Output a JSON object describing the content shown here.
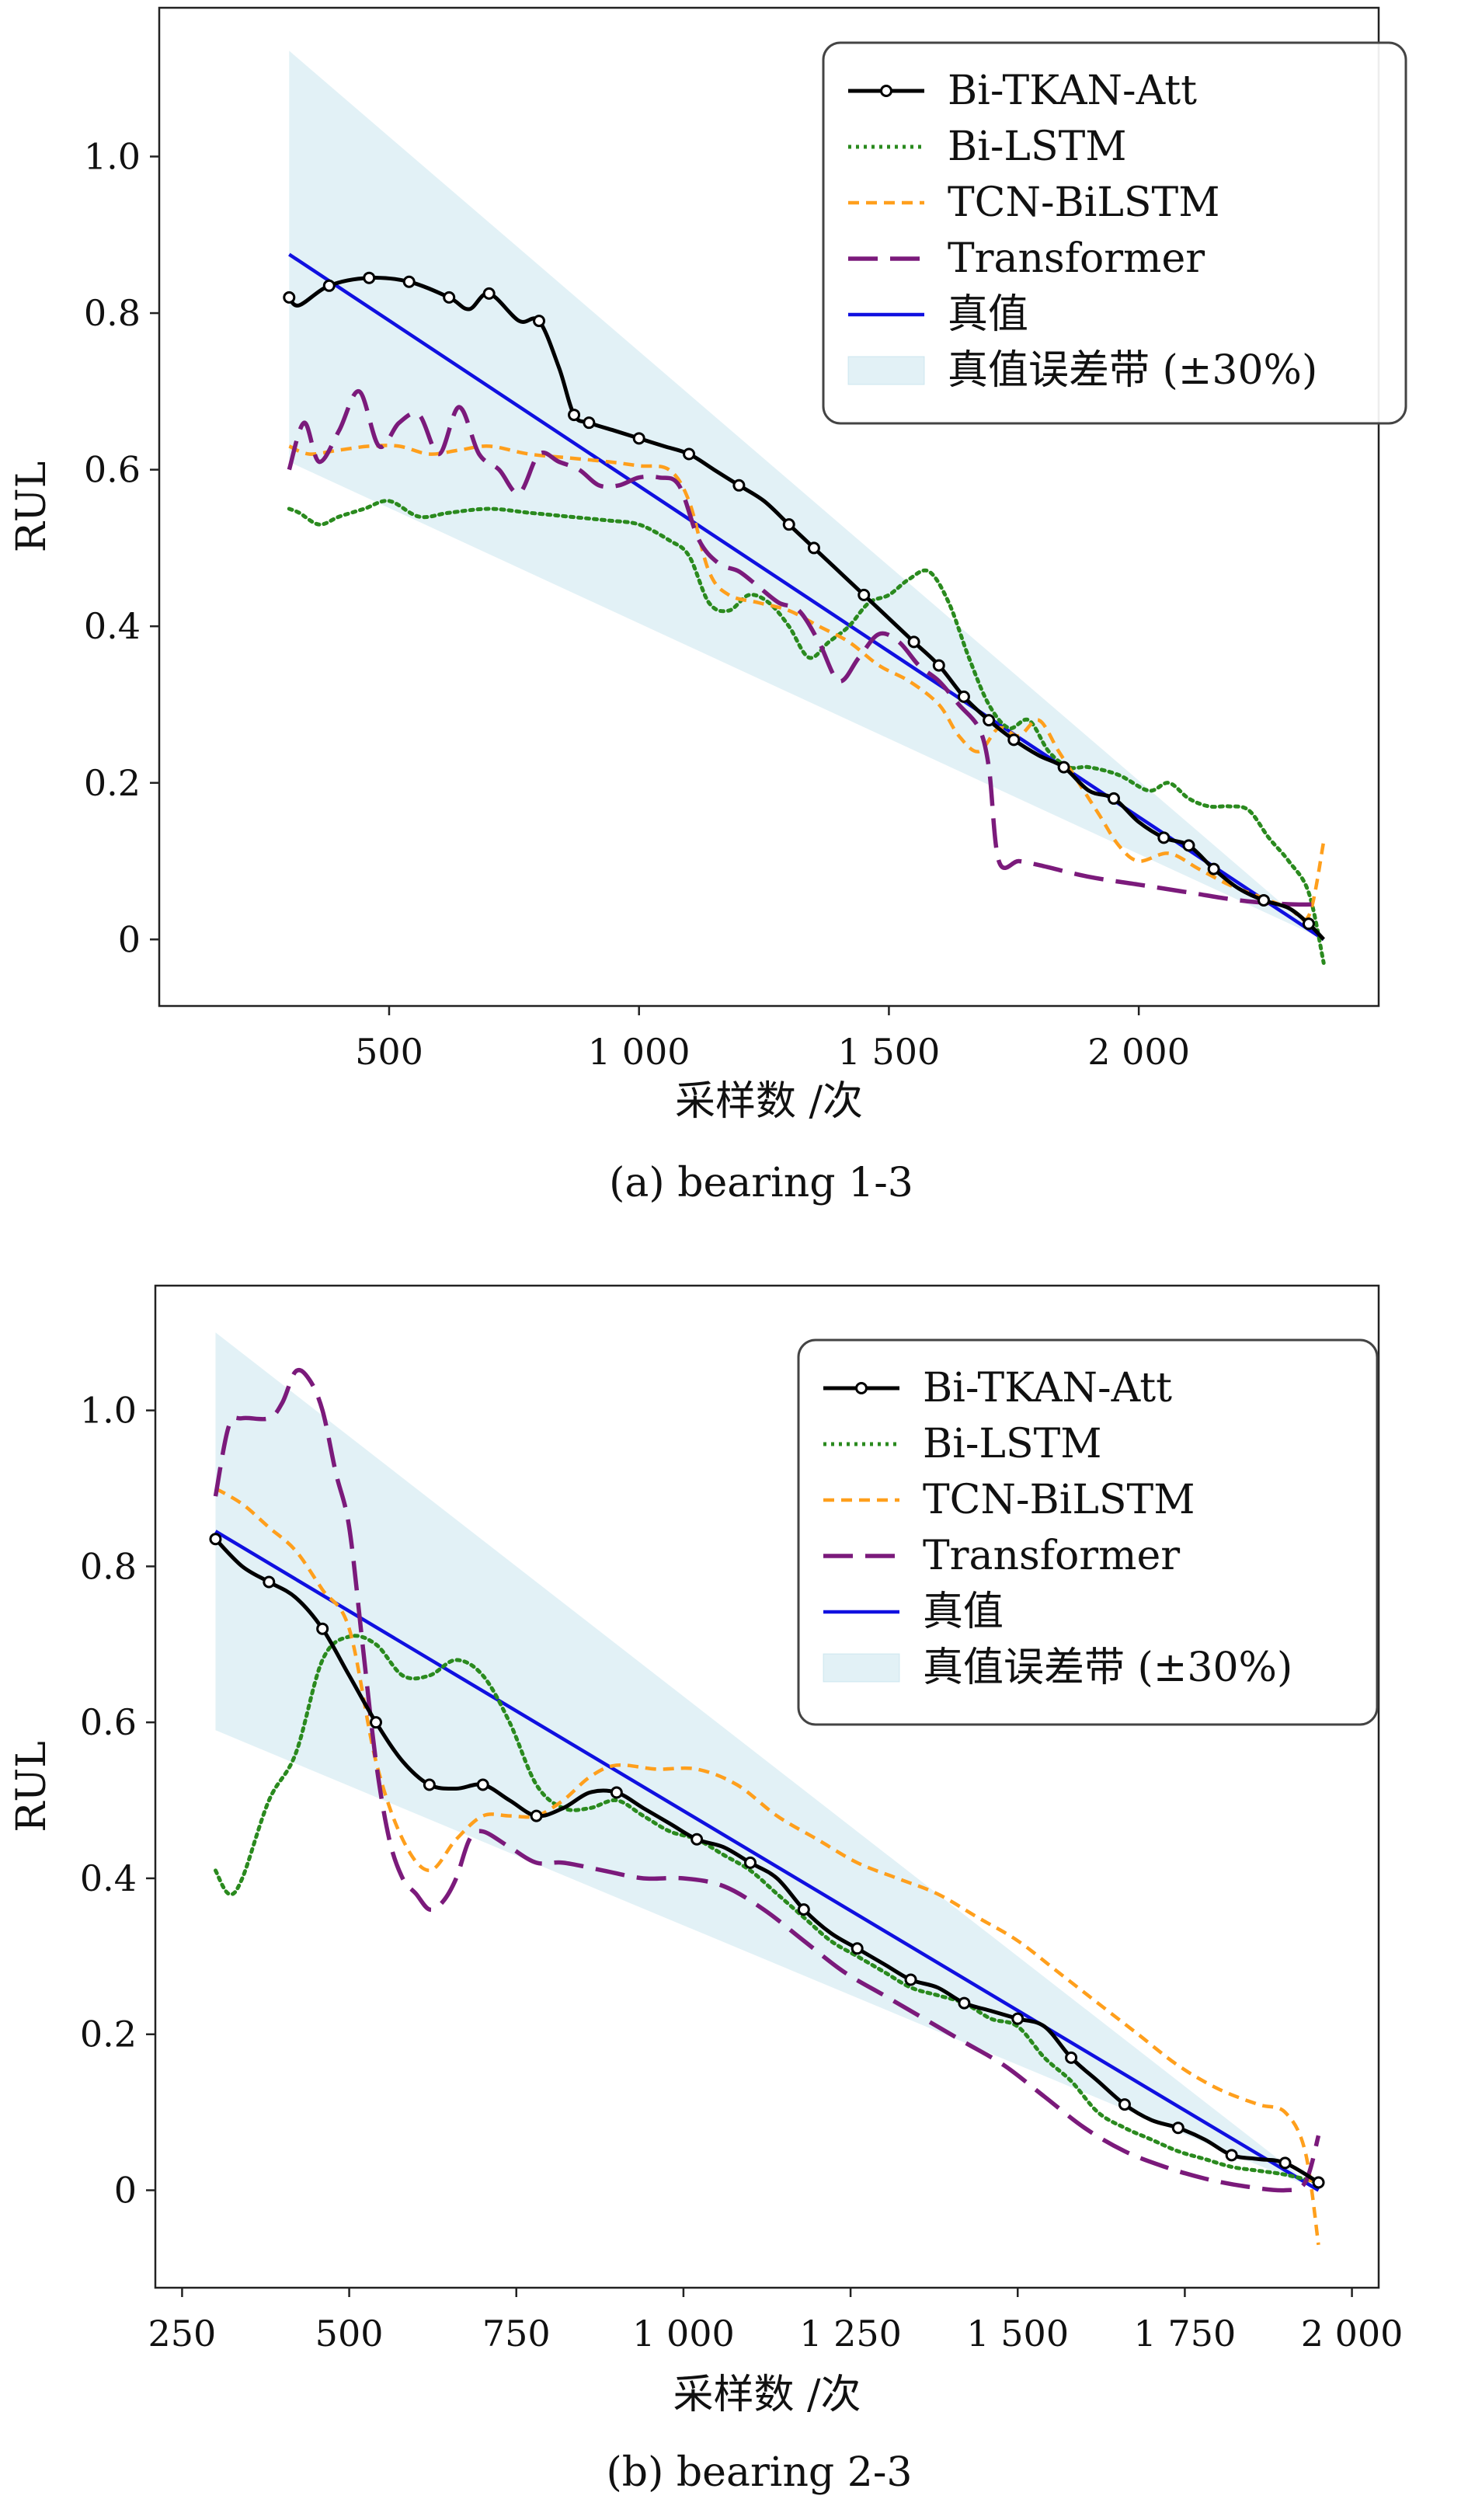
{
  "chart_data": [
    {
      "type": "line",
      "caption": "(a) bearing 1-3",
      "xlabel": "采样数 /次",
      "ylabel": "RUL",
      "xlim": [
        40,
        2480
      ],
      "ylim": [
        -0.085,
        1.19
      ],
      "xticks": [
        500,
        1000,
        1500,
        2000
      ],
      "xtick_labels": [
        "500",
        "1 000",
        "1 500",
        "2 000"
      ],
      "yticks": [
        0,
        0.2,
        0.4,
        0.6,
        0.8,
        1.0
      ],
      "ytick_labels": [
        "0",
        "0.2",
        "0.4",
        "0.6",
        "0.8",
        "1.0"
      ],
      "legend_position": "top-right",
      "band": {
        "name": "真值误差带 (±30%)",
        "color": "#add8e6",
        "x": [
          300,
          2370
        ],
        "upper": [
          1.135,
          0
        ],
        "lower": [
          0.61,
          0
        ]
      },
      "series": [
        {
          "name": "Bi-TKAN-Att",
          "color": "#000000",
          "style": "solid-marker",
          "x": [
            300,
            320,
            380,
            460,
            540,
            620,
            660,
            700,
            760,
            800,
            840,
            870,
            900,
            950,
            1000,
            1050,
            1100,
            1150,
            1200,
            1250,
            1300,
            1350,
            1400,
            1450,
            1500,
            1550,
            1600,
            1650,
            1700,
            1750,
            1800,
            1850,
            1900,
            1950,
            2000,
            2050,
            2100,
            2150,
            2200,
            2250,
            2300,
            2340,
            2370
          ],
          "y": [
            0.82,
            0.81,
            0.835,
            0.845,
            0.84,
            0.82,
            0.805,
            0.825,
            0.79,
            0.79,
            0.73,
            0.67,
            0.66,
            0.65,
            0.64,
            0.63,
            0.62,
            0.6,
            0.58,
            0.56,
            0.53,
            0.5,
            0.47,
            0.44,
            0.41,
            0.38,
            0.35,
            0.31,
            0.28,
            0.255,
            0.235,
            0.22,
            0.19,
            0.18,
            0.15,
            0.13,
            0.12,
            0.09,
            0.065,
            0.05,
            0.04,
            0.02,
            0.0
          ],
          "markers_x": [
            300,
            380,
            460,
            540,
            620,
            700,
            800,
            870,
            900,
            1000,
            1100,
            1200,
            1300,
            1350,
            1450,
            1550,
            1600,
            1650,
            1700,
            1750,
            1850,
            1950,
            2050,
            2100,
            2150,
            2250,
            2340
          ]
        },
        {
          "name": "Bi-LSTM",
          "color": "#2a8a1e",
          "style": "dotted",
          "x": [
            300,
            320,
            360,
            400,
            450,
            500,
            560,
            620,
            700,
            780,
            860,
            940,
            1000,
            1060,
            1100,
            1140,
            1180,
            1220,
            1260,
            1300,
            1340,
            1380,
            1420,
            1460,
            1500,
            1540,
            1580,
            1620,
            1660,
            1700,
            1740,
            1780,
            1820,
            1860,
            1900,
            1960,
            2020,
            2060,
            2100,
            2140,
            2180,
            2220,
            2260,
            2300,
            2340,
            2370
          ],
          "y": [
            0.55,
            0.545,
            0.53,
            0.54,
            0.55,
            0.56,
            0.54,
            0.545,
            0.55,
            0.545,
            0.54,
            0.535,
            0.53,
            0.51,
            0.49,
            0.43,
            0.42,
            0.44,
            0.43,
            0.4,
            0.36,
            0.38,
            0.4,
            0.43,
            0.44,
            0.46,
            0.47,
            0.43,
            0.36,
            0.3,
            0.27,
            0.28,
            0.24,
            0.22,
            0.22,
            0.21,
            0.19,
            0.2,
            0.18,
            0.17,
            0.17,
            0.165,
            0.13,
            0.1,
            0.06,
            -0.03
          ]
        },
        {
          "name": "TCN-BiLSTM",
          "color": "#ff9f1c",
          "style": "dashed",
          "x": [
            300,
            340,
            400,
            460,
            520,
            580,
            640,
            700,
            780,
            860,
            940,
            1000,
            1060,
            1100,
            1140,
            1180,
            1240,
            1300,
            1360,
            1420,
            1480,
            1540,
            1600,
            1640,
            1680,
            1720,
            1760,
            1800,
            1840,
            1880,
            1920,
            1960,
            2000,
            2060,
            2120,
            2180,
            2240,
            2300,
            2340,
            2370
          ],
          "y": [
            0.63,
            0.62,
            0.625,
            0.63,
            0.63,
            0.62,
            0.625,
            0.63,
            0.62,
            0.615,
            0.61,
            0.605,
            0.6,
            0.56,
            0.47,
            0.44,
            0.43,
            0.42,
            0.4,
            0.38,
            0.35,
            0.33,
            0.3,
            0.26,
            0.24,
            0.27,
            0.26,
            0.28,
            0.24,
            0.2,
            0.16,
            0.12,
            0.1,
            0.11,
            0.09,
            0.07,
            0.055,
            0.04,
            0.03,
            0.125
          ]
        },
        {
          "name": "Transformer",
          "color": "#7b1a7b",
          "style": "longdash",
          "x": [
            300,
            330,
            360,
            400,
            440,
            480,
            520,
            560,
            600,
            640,
            680,
            720,
            760,
            800,
            840,
            880,
            920,
            960,
            1000,
            1040,
            1080,
            1120,
            1160,
            1200,
            1240,
            1280,
            1320,
            1360,
            1400,
            1440,
            1480,
            1520,
            1560,
            1600,
            1640,
            1680,
            1700,
            1720,
            1760,
            1800,
            1900,
            2000,
            2100,
            2200,
            2300,
            2370
          ],
          "y": [
            0.6,
            0.66,
            0.61,
            0.65,
            0.7,
            0.63,
            0.66,
            0.67,
            0.62,
            0.68,
            0.62,
            0.6,
            0.57,
            0.62,
            0.61,
            0.6,
            0.58,
            0.58,
            0.59,
            0.59,
            0.58,
            0.51,
            0.48,
            0.47,
            0.45,
            0.43,
            0.42,
            0.38,
            0.33,
            0.36,
            0.39,
            0.38,
            0.35,
            0.33,
            0.3,
            0.27,
            0.22,
            0.1,
            0.1,
            0.095,
            0.08,
            0.07,
            0.06,
            0.05,
            0.045,
            0.045
          ]
        },
        {
          "name": "真值",
          "color": "#1010e0",
          "style": "solid",
          "x": [
            300,
            2370
          ],
          "y": [
            0.875,
            0.0
          ]
        }
      ]
    },
    {
      "type": "line",
      "caption": "(b) bearing 2-3",
      "xlabel": "采样数 /次",
      "ylabel": "RUL",
      "xlim": [
        210,
        2040
      ],
      "ylim": [
        -0.125,
        1.16
      ],
      "xticks": [
        250,
        500,
        750,
        1000,
        1250,
        1500,
        1750,
        2000
      ],
      "xtick_labels": [
        "250",
        "500",
        "750",
        "1 000",
        "1 250",
        "1 500",
        "1 750",
        "2 000"
      ],
      "yticks": [
        0,
        0.2,
        0.4,
        0.6,
        0.8,
        1.0
      ],
      "ytick_labels": [
        "0",
        "0.2",
        "0.4",
        "0.6",
        "0.8",
        "1.0"
      ],
      "legend_position": "top-right",
      "band": {
        "name": "真值误差带 (±30%)",
        "color": "#add8e6",
        "x": [
          300,
          1950
        ],
        "upper": [
          1.1,
          0
        ],
        "lower": [
          0.59,
          0
        ]
      },
      "series": [
        {
          "name": "Bi-TKAN-Att",
          "color": "#000000",
          "style": "solid-marker",
          "x": [
            300,
            340,
            380,
            420,
            460,
            500,
            540,
            580,
            620,
            660,
            700,
            740,
            780,
            820,
            860,
            900,
            940,
            980,
            1020,
            1060,
            1100,
            1140,
            1180,
            1220,
            1260,
            1300,
            1340,
            1380,
            1420,
            1460,
            1500,
            1540,
            1580,
            1620,
            1660,
            1700,
            1740,
            1780,
            1820,
            1860,
            1900,
            1950
          ],
          "y": [
            0.835,
            0.8,
            0.78,
            0.76,
            0.72,
            0.66,
            0.6,
            0.55,
            0.52,
            0.515,
            0.52,
            0.5,
            0.48,
            0.49,
            0.51,
            0.51,
            0.49,
            0.47,
            0.45,
            0.44,
            0.42,
            0.4,
            0.36,
            0.33,
            0.31,
            0.29,
            0.27,
            0.26,
            0.24,
            0.23,
            0.22,
            0.21,
            0.17,
            0.14,
            0.11,
            0.09,
            0.08,
            0.065,
            0.045,
            0.04,
            0.035,
            0.01
          ],
          "markers_x": [
            300,
            380,
            460,
            540,
            620,
            700,
            780,
            900,
            1020,
            1100,
            1180,
            1260,
            1340,
            1420,
            1500,
            1580,
            1660,
            1740,
            1820,
            1900,
            1950
          ]
        },
        {
          "name": "Bi-LSTM",
          "color": "#2a8a1e",
          "style": "dotted",
          "x": [
            300,
            320,
            340,
            380,
            420,
            460,
            500,
            540,
            580,
            620,
            660,
            700,
            740,
            780,
            820,
            860,
            900,
            940,
            980,
            1020,
            1060,
            1100,
            1140,
            1180,
            1220,
            1260,
            1300,
            1340,
            1380,
            1420,
            1460,
            1500,
            1540,
            1580,
            1620,
            1660,
            1700,
            1740,
            1780,
            1820,
            1860,
            1900,
            1950
          ],
          "y": [
            0.41,
            0.38,
            0.4,
            0.5,
            0.56,
            0.68,
            0.71,
            0.7,
            0.66,
            0.66,
            0.68,
            0.66,
            0.6,
            0.52,
            0.49,
            0.49,
            0.5,
            0.48,
            0.46,
            0.45,
            0.43,
            0.41,
            0.38,
            0.35,
            0.32,
            0.3,
            0.28,
            0.26,
            0.25,
            0.24,
            0.22,
            0.21,
            0.17,
            0.14,
            0.1,
            0.08,
            0.065,
            0.05,
            0.04,
            0.03,
            0.025,
            0.02,
            0.01
          ]
        },
        {
          "name": "TCN-BiLSTM",
          "color": "#ff9f1c",
          "style": "dashed",
          "x": [
            300,
            340,
            380,
            420,
            460,
            500,
            540,
            580,
            620,
            660,
            700,
            740,
            780,
            820,
            860,
            900,
            960,
            1020,
            1080,
            1140,
            1200,
            1260,
            1320,
            1380,
            1440,
            1500,
            1560,
            1620,
            1680,
            1740,
            1800,
            1860,
            1900,
            1930,
            1950
          ],
          "y": [
            0.9,
            0.88,
            0.85,
            0.82,
            0.77,
            0.72,
            0.55,
            0.45,
            0.41,
            0.45,
            0.48,
            0.48,
            0.48,
            0.5,
            0.53,
            0.545,
            0.54,
            0.54,
            0.52,
            0.48,
            0.45,
            0.42,
            0.4,
            0.38,
            0.35,
            0.32,
            0.28,
            0.24,
            0.2,
            0.16,
            0.13,
            0.11,
            0.1,
            0.05,
            -0.07
          ]
        },
        {
          "name": "Transformer",
          "color": "#7b1a7b",
          "style": "longdash",
          "x": [
            300,
            320,
            340,
            380,
            400,
            420,
            440,
            460,
            480,
            500,
            520,
            540,
            560,
            580,
            600,
            620,
            640,
            660,
            680,
            700,
            740,
            780,
            820,
            880,
            940,
            1000,
            1060,
            1120,
            1180,
            1240,
            1300,
            1360,
            1420,
            1480,
            1540,
            1600,
            1660,
            1720,
            1780,
            1840,
            1900,
            1930,
            1950
          ],
          "y": [
            0.89,
            0.98,
            0.99,
            0.99,
            1.01,
            1.05,
            1.04,
            1.0,
            0.92,
            0.85,
            0.7,
            0.55,
            0.45,
            0.4,
            0.38,
            0.36,
            0.37,
            0.4,
            0.45,
            0.46,
            0.44,
            0.42,
            0.42,
            0.41,
            0.4,
            0.4,
            0.39,
            0.36,
            0.32,
            0.28,
            0.25,
            0.22,
            0.19,
            0.16,
            0.12,
            0.08,
            0.05,
            0.03,
            0.015,
            0.005,
            0.0,
            0.01,
            0.07
          ]
        },
        {
          "name": "真值",
          "color": "#1010e0",
          "style": "solid",
          "x": [
            300,
            1950
          ],
          "y": [
            0.845,
            0.0
          ]
        }
      ]
    }
  ]
}
